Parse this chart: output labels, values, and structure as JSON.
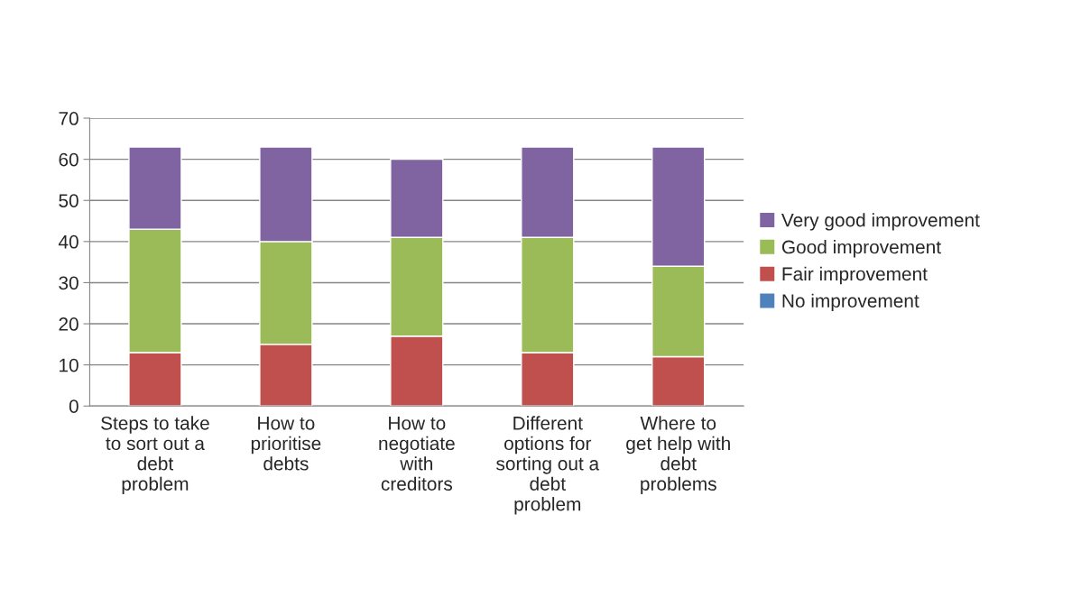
{
  "chart_data": {
    "type": "bar",
    "stacked": true,
    "categories": [
      "Steps to take\nto sort out a\ndebt\nproblem",
      "How to\nprioritise\ndebts",
      "How to\nnegotiate\nwith\ncreditors",
      "Different\noptions for\nsorting out a\ndebt\nproblem",
      "Where to\nget help with\ndebt\nproblems"
    ],
    "series": [
      {
        "name": "No improvement",
        "color": "#4f81bd",
        "values": [
          0,
          0,
          0,
          0,
          0
        ]
      },
      {
        "name": "Fair improvement",
        "color": "#c0504d",
        "values": [
          13,
          15,
          17,
          13,
          12
        ]
      },
      {
        "name": "Good improvement",
        "color": "#9bbb59",
        "values": [
          30,
          25,
          24,
          28,
          22
        ]
      },
      {
        "name": "Very good improvement",
        "color": "#8064a2",
        "values": [
          20,
          23,
          19,
          22,
          29
        ]
      }
    ],
    "ylim": [
      0,
      70
    ],
    "yticks": [
      0,
      10,
      20,
      30,
      40,
      50,
      60,
      70
    ],
    "grid": "y",
    "legend": "right"
  }
}
